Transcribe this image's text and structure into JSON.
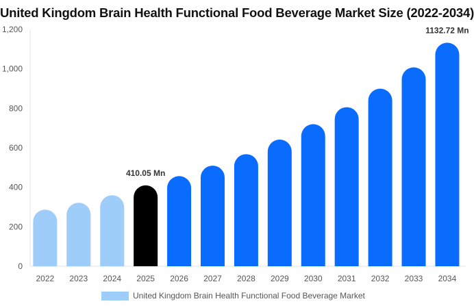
{
  "chart_data": {
    "type": "bar",
    "title": "United Kingdom Brain Health Functional Food Beverage Market Size (2022-2034)",
    "categories": [
      "2022",
      "2023",
      "2024",
      "2025",
      "2026",
      "2027",
      "2028",
      "2029",
      "2030",
      "2031",
      "2032",
      "2033",
      "2034"
    ],
    "series": [
      {
        "name": "United Kingdom Brain Health Functional Food Beverage Market",
        "values": [
          287,
          322,
          360,
          410.05,
          457,
          510,
          568,
          642,
          720,
          806,
          900,
          1008,
          1132.72
        ]
      }
    ],
    "data_labels": [
      {
        "category": "2025",
        "text": "410.05 Mn"
      },
      {
        "category": "2034",
        "text": "1132.72 Mn"
      }
    ],
    "bar_colors": [
      "#9fcdfa",
      "#9fcdfa",
      "#9fcdfa",
      "#000000",
      "#0a6cff",
      "#0a6cff",
      "#0a6cff",
      "#0a6cff",
      "#0a6cff",
      "#0a6cff",
      "#0a6cff",
      "#0a6cff",
      "#0a6cff"
    ],
    "y_ticks": [
      "0",
      "200",
      "400",
      "600",
      "800",
      "1,000",
      "1,200"
    ],
    "ylim": [
      0,
      1200
    ],
    "xlabel": "",
    "ylabel": "",
    "grid": false,
    "legend": {
      "position": "bottom",
      "label": "United Kingdom Brain Health Functional Food Beverage Market",
      "color": "#9fcdfa"
    }
  }
}
